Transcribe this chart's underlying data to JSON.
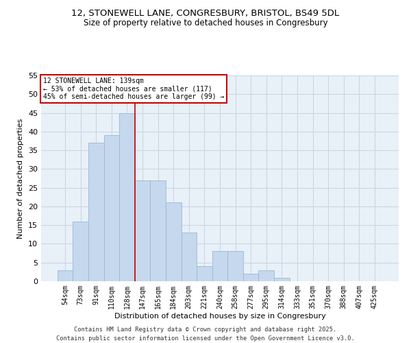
{
  "title_line1": "12, STONEWELL LANE, CONGRESBURY, BRISTOL, BS49 5DL",
  "title_line2": "Size of property relative to detached houses in Congresbury",
  "xlabel": "Distribution of detached houses by size in Congresbury",
  "ylabel": "Number of detached properties",
  "bar_labels": [
    "54sqm",
    "73sqm",
    "91sqm",
    "110sqm",
    "128sqm",
    "147sqm",
    "165sqm",
    "184sqm",
    "203sqm",
    "221sqm",
    "240sqm",
    "258sqm",
    "277sqm",
    "295sqm",
    "314sqm",
    "333sqm",
    "351sqm",
    "370sqm",
    "388sqm",
    "407sqm",
    "425sqm"
  ],
  "bar_values": [
    3,
    16,
    37,
    39,
    45,
    27,
    27,
    21,
    13,
    4,
    8,
    8,
    2,
    3,
    1,
    0,
    0,
    0,
    0,
    0,
    0
  ],
  "bar_color": "#c5d8ed",
  "bar_edge_color": "#9ab8d2",
  "grid_color": "#c8d4e0",
  "background_color": "#e8f0f8",
  "annotation_box_text": "12 STONEWELL LANE: 139sqm\n← 53% of detached houses are smaller (117)\n45% of semi-detached houses are larger (99) →",
  "annotation_box_color": "#ffffff",
  "annotation_box_edge_color": "#cc0000",
  "vline_x": 4.5,
  "vline_color": "#cc0000",
  "ylim": [
    0,
    55
  ],
  "yticks": [
    0,
    5,
    10,
    15,
    20,
    25,
    30,
    35,
    40,
    45,
    50,
    55
  ],
  "footer_line1": "Contains HM Land Registry data © Crown copyright and database right 2025.",
  "footer_line2": "Contains public sector information licensed under the Open Government Licence v3.0."
}
